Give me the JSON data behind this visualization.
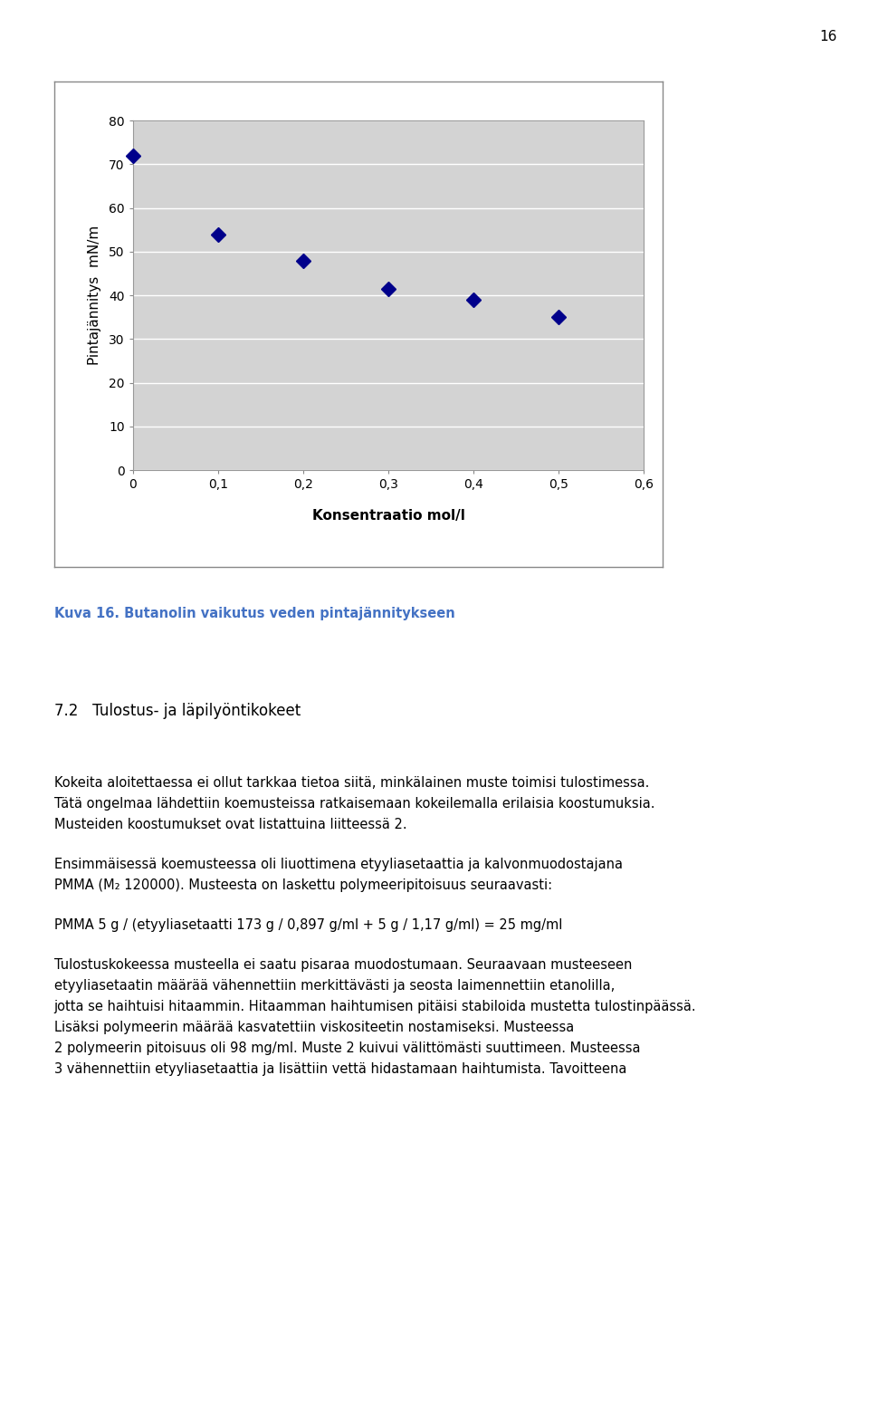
{
  "page_number": "16",
  "chart": {
    "x_data": [
      0,
      0.1,
      0.2,
      0.3,
      0.4,
      0.5
    ],
    "y_data": [
      72,
      54,
      48,
      41.5,
      39,
      35
    ],
    "xlim": [
      0,
      0.6
    ],
    "ylim": [
      0,
      80
    ],
    "x_ticks": [
      0,
      0.1,
      0.2,
      0.3,
      0.4,
      0.5,
      0.6
    ],
    "x_tick_labels": [
      "0",
      "0,1",
      "0,2",
      "0,3",
      "0,4",
      "0,5",
      "0,6"
    ],
    "y_ticks": [
      0,
      10,
      20,
      30,
      40,
      50,
      60,
      70,
      80
    ],
    "y_tick_labels": [
      "0",
      "10",
      "20",
      "30",
      "40",
      "50",
      "60",
      "70",
      "80"
    ],
    "xlabel": "Konsentraatio mol/l",
    "ylabel": "Pintajännitys  mN/m",
    "marker_color": "#00008B",
    "plot_bg_color": "#D3D3D3",
    "marker_size": 8
  },
  "caption_text": "Kuva 16. Butanolin vaikutus veden pintajännitykseen",
  "caption_color": "#4472C4",
  "section_heading": "7.2   Tulostus- ja läpilyöntikokeet",
  "p1_lines": [
    "Kokeita aloitettaessa ei ollut tarkkaa tietoa siitä, minkälainen muste toimisi tulostimessa.",
    "Tätä ongelmaa lähdettiin koemusteissa ratkaisemaan kokeilemalla erilaisia koostumuksia.",
    "Musteiden koostumukset ovat listattuina liitteessä 2."
  ],
  "p2_lines": [
    "Ensimmäisessä koemusteessa oli liuottimena etyyliasetaattia ja kalvonmuodostajana",
    "PMMA (M₂ 120000). Musteesta on laskettu polymeeripitoisuus seuraavasti:"
  ],
  "p3_lines": [
    "PMMA 5 g / (etyyliasetaatti 173 g / 0,897 g/ml + 5 g / 1,17 g/ml) = 25 mg/ml"
  ],
  "p4_lines": [
    "Tulostuskokeessa musteella ei saatu pisaraa muodostumaan. Seuraavaan musteeseen",
    "etyyliasetaatin määrää vähennettiin merkittävästi ja seosta laimennettiin etanolilla,",
    "jotta se haihtuisi hitaammin. Hitaamman haihtumisen pitäisi stabiloida mustetta tulostinpäässä.",
    "Lisäksi polymeerin määrää kasvatettiin viskositeetin nostamiseksi. Musteessa",
    "2 polymeerin pitoisuus oli 98 mg/ml. Muste 2 kuivui välittömästi suuttimeen. Musteessa",
    "3 vähennettiin etyyliasetaattia ja lisättiin vettä hidastamaan haihtumista. Tavoitteena"
  ]
}
